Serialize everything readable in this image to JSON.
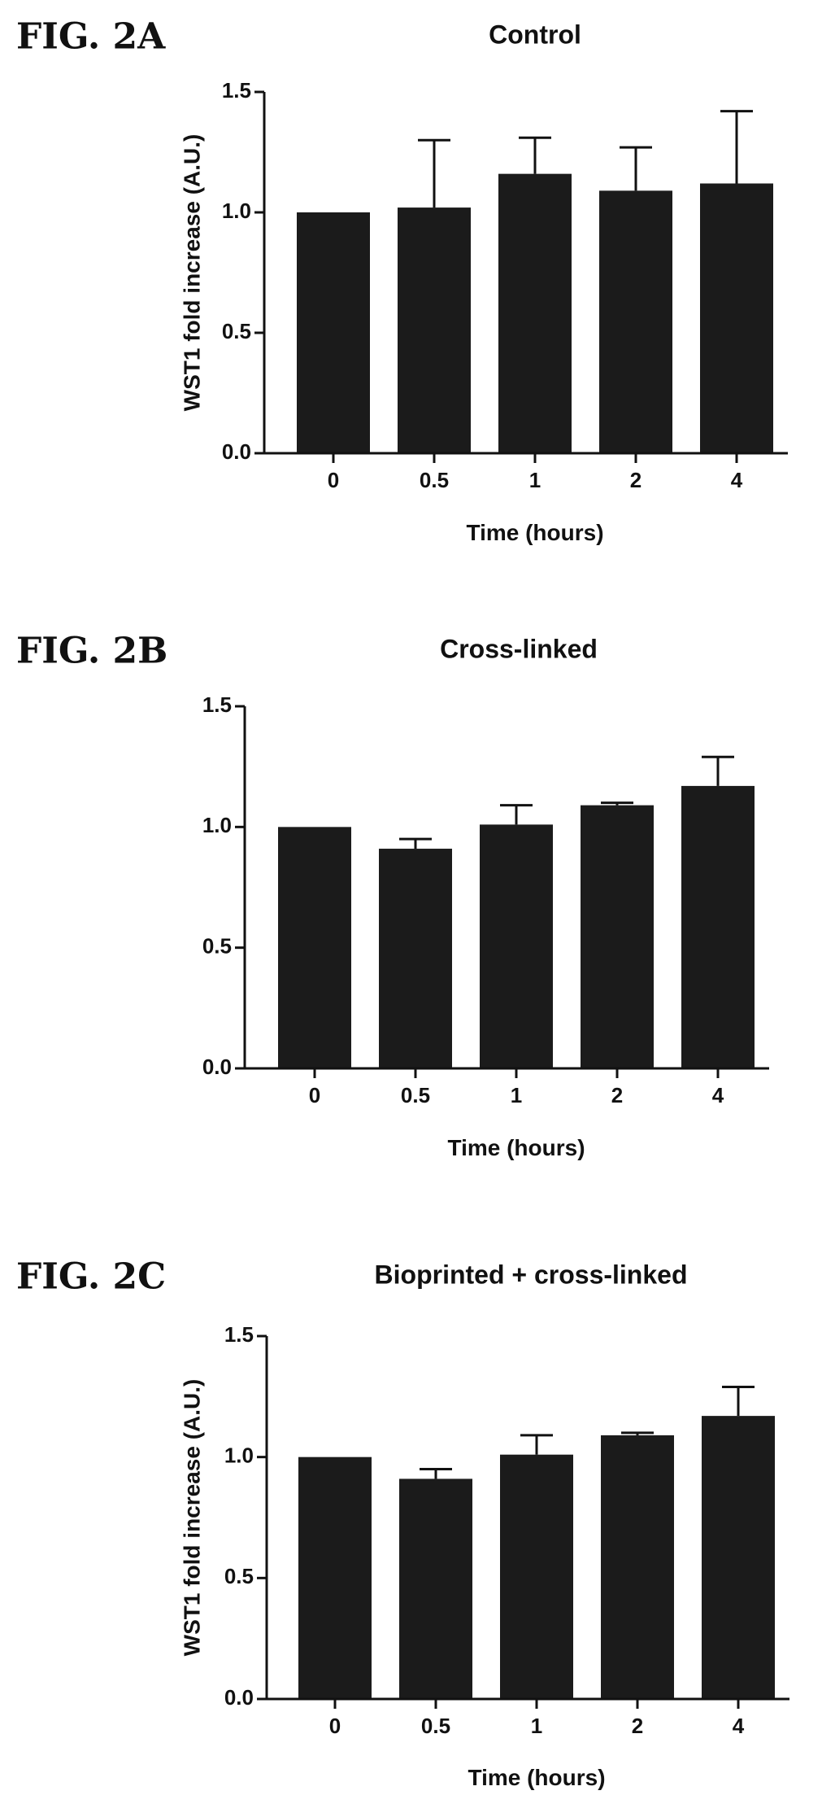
{
  "chart_data": [
    {
      "type": "bar",
      "figure_label": "FIG. 2A",
      "title": "Control",
      "xlabel": "Time (hours)",
      "ylabel": "WST1 fold increase (A.U.)",
      "categories": [
        "0",
        "0.5",
        "1",
        "2",
        "4"
      ],
      "values": [
        1.0,
        1.02,
        1.16,
        1.09,
        1.12
      ],
      "error_plus": [
        0.0,
        0.28,
        0.15,
        0.18,
        0.3
      ],
      "ylim": [
        0,
        1.5
      ],
      "yticks": [
        "0.0",
        "0.5",
        "1.0",
        "1.5"
      ],
      "bar_color": "#1b1b1b",
      "grid": false
    },
    {
      "type": "bar",
      "figure_label": "FIG. 2B",
      "title": "Cross-linked",
      "xlabel": "Time (hours)",
      "ylabel": "",
      "categories": [
        "0",
        "0.5",
        "1",
        "2",
        "4"
      ],
      "values": [
        1.0,
        0.91,
        1.01,
        1.09,
        1.17
      ],
      "error_plus": [
        0.0,
        0.04,
        0.08,
        0.01,
        0.12
      ],
      "ylim": [
        0,
        1.5
      ],
      "yticks": [
        "0.0",
        "0.5",
        "1.0",
        "1.5"
      ],
      "bar_color": "#1b1b1b",
      "grid": false
    },
    {
      "type": "bar",
      "figure_label": "FIG. 2C",
      "title": "Bioprinted + cross-linked",
      "xlabel": "Time (hours)",
      "ylabel": "WST1 fold increase (A.U.)",
      "categories": [
        "0",
        "0.5",
        "1",
        "2",
        "4"
      ],
      "values": [
        1.0,
        0.91,
        1.01,
        1.09,
        1.17
      ],
      "error_plus": [
        0.0,
        0.04,
        0.08,
        0.01,
        0.12
      ],
      "ylim": [
        0,
        1.5
      ],
      "yticks": [
        "0.0",
        "0.5",
        "1.0",
        "1.5"
      ],
      "bar_color": "#1b1b1b",
      "grid": false
    }
  ]
}
